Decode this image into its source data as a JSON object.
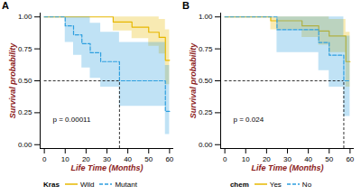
{
  "chart_data": [
    {
      "type": "line",
      "title": "A",
      "annotation": "p = 0.00011",
      "x_label": "Life Time (Months)",
      "y_label": "Survival probability",
      "xlim": [
        -2,
        62
      ],
      "ylim": [
        -0.03,
        1.03
      ],
      "xticks": [
        0,
        10,
        20,
        30,
        40,
        50,
        60
      ],
      "yticks": [
        {
          "value": 0,
          "label": "0.00"
        },
        {
          "value": 0.25,
          "label": "0.25"
        },
        {
          "value": 0.5,
          "label": "0.50"
        },
        {
          "value": 0.75,
          "label": "0.75"
        },
        {
          "value": 1,
          "label": "1.00"
        }
      ],
      "legend": "bottom",
      "legend_title": "Kras",
      "median_survival": {
        "x": 36,
        "y": 0.5
      },
      "series": [
        {
          "name": "Wild",
          "color": "#E7B800",
          "line_style": "solid",
          "x": [
            0,
            33,
            42,
            50,
            55,
            58,
            60
          ],
          "values": [
            1,
            0.96,
            0.92,
            0.88,
            0.84,
            0.66,
            0.66
          ],
          "lower": [
            1,
            0.89,
            0.83,
            0.77,
            0.71,
            0.47,
            0.47
          ],
          "upper": [
            1,
            1,
            1,
            1,
            0.98,
            0.9,
            0.9
          ]
        },
        {
          "name": "Mutant",
          "color": "#2E9FDF",
          "line_style": "dashed",
          "x": [
            0,
            10,
            14,
            18,
            22,
            27,
            36,
            58,
            60
          ],
          "values": [
            1,
            0.93,
            0.86,
            0.79,
            0.72,
            0.65,
            0.5,
            0.26,
            0.26
          ],
          "lower": [
            1,
            0.8,
            0.7,
            0.6,
            0.52,
            0.45,
            0.3,
            0.08,
            0.08
          ],
          "upper": [
            1,
            1,
            1,
            1,
            0.95,
            0.88,
            0.8,
            0.62,
            0.62
          ]
        }
      ]
    },
    {
      "type": "line",
      "title": "B",
      "annotation": "p = 0.024",
      "x_label": "Life Time (Months)",
      "y_label": "Survival probability",
      "xlim": [
        -2,
        62
      ],
      "ylim": [
        -0.03,
        1.03
      ],
      "xticks": [
        0,
        10,
        20,
        30,
        40,
        50,
        60
      ],
      "yticks": [
        {
          "value": 0,
          "label": "0.00"
        },
        {
          "value": 0.25,
          "label": "0.25"
        },
        {
          "value": 0.5,
          "label": "0.50"
        },
        {
          "value": 0.75,
          "label": "0.75"
        },
        {
          "value": 1,
          "label": "1.00"
        }
      ],
      "legend": "bottom",
      "legend_title": "chem",
      "median_survival": {
        "x": 57,
        "y": 0.5
      },
      "series": [
        {
          "name": "Yes",
          "color": "#E7B800",
          "line_style": "solid",
          "x": [
            0,
            22,
            37,
            45,
            50,
            58,
            60
          ],
          "values": [
            1,
            0.97,
            0.93,
            0.89,
            0.85,
            0.65,
            0.65
          ],
          "lower": [
            1,
            0.9,
            0.84,
            0.78,
            0.72,
            0.45,
            0.45
          ],
          "upper": [
            1,
            1,
            1,
            1,
            0.98,
            0.88,
            0.88
          ]
        },
        {
          "name": "No",
          "color": "#2E9FDF",
          "line_style": "dashed",
          "x": [
            0,
            25,
            45,
            50,
            57,
            60
          ],
          "values": [
            1,
            0.9,
            0.8,
            0.7,
            0.5,
            0.5
          ],
          "lower": [
            1,
            0.72,
            0.58,
            0.45,
            0.22,
            0.22
          ],
          "upper": [
            1,
            1,
            1,
            1,
            0.85,
            0.85
          ]
        }
      ]
    }
  ]
}
